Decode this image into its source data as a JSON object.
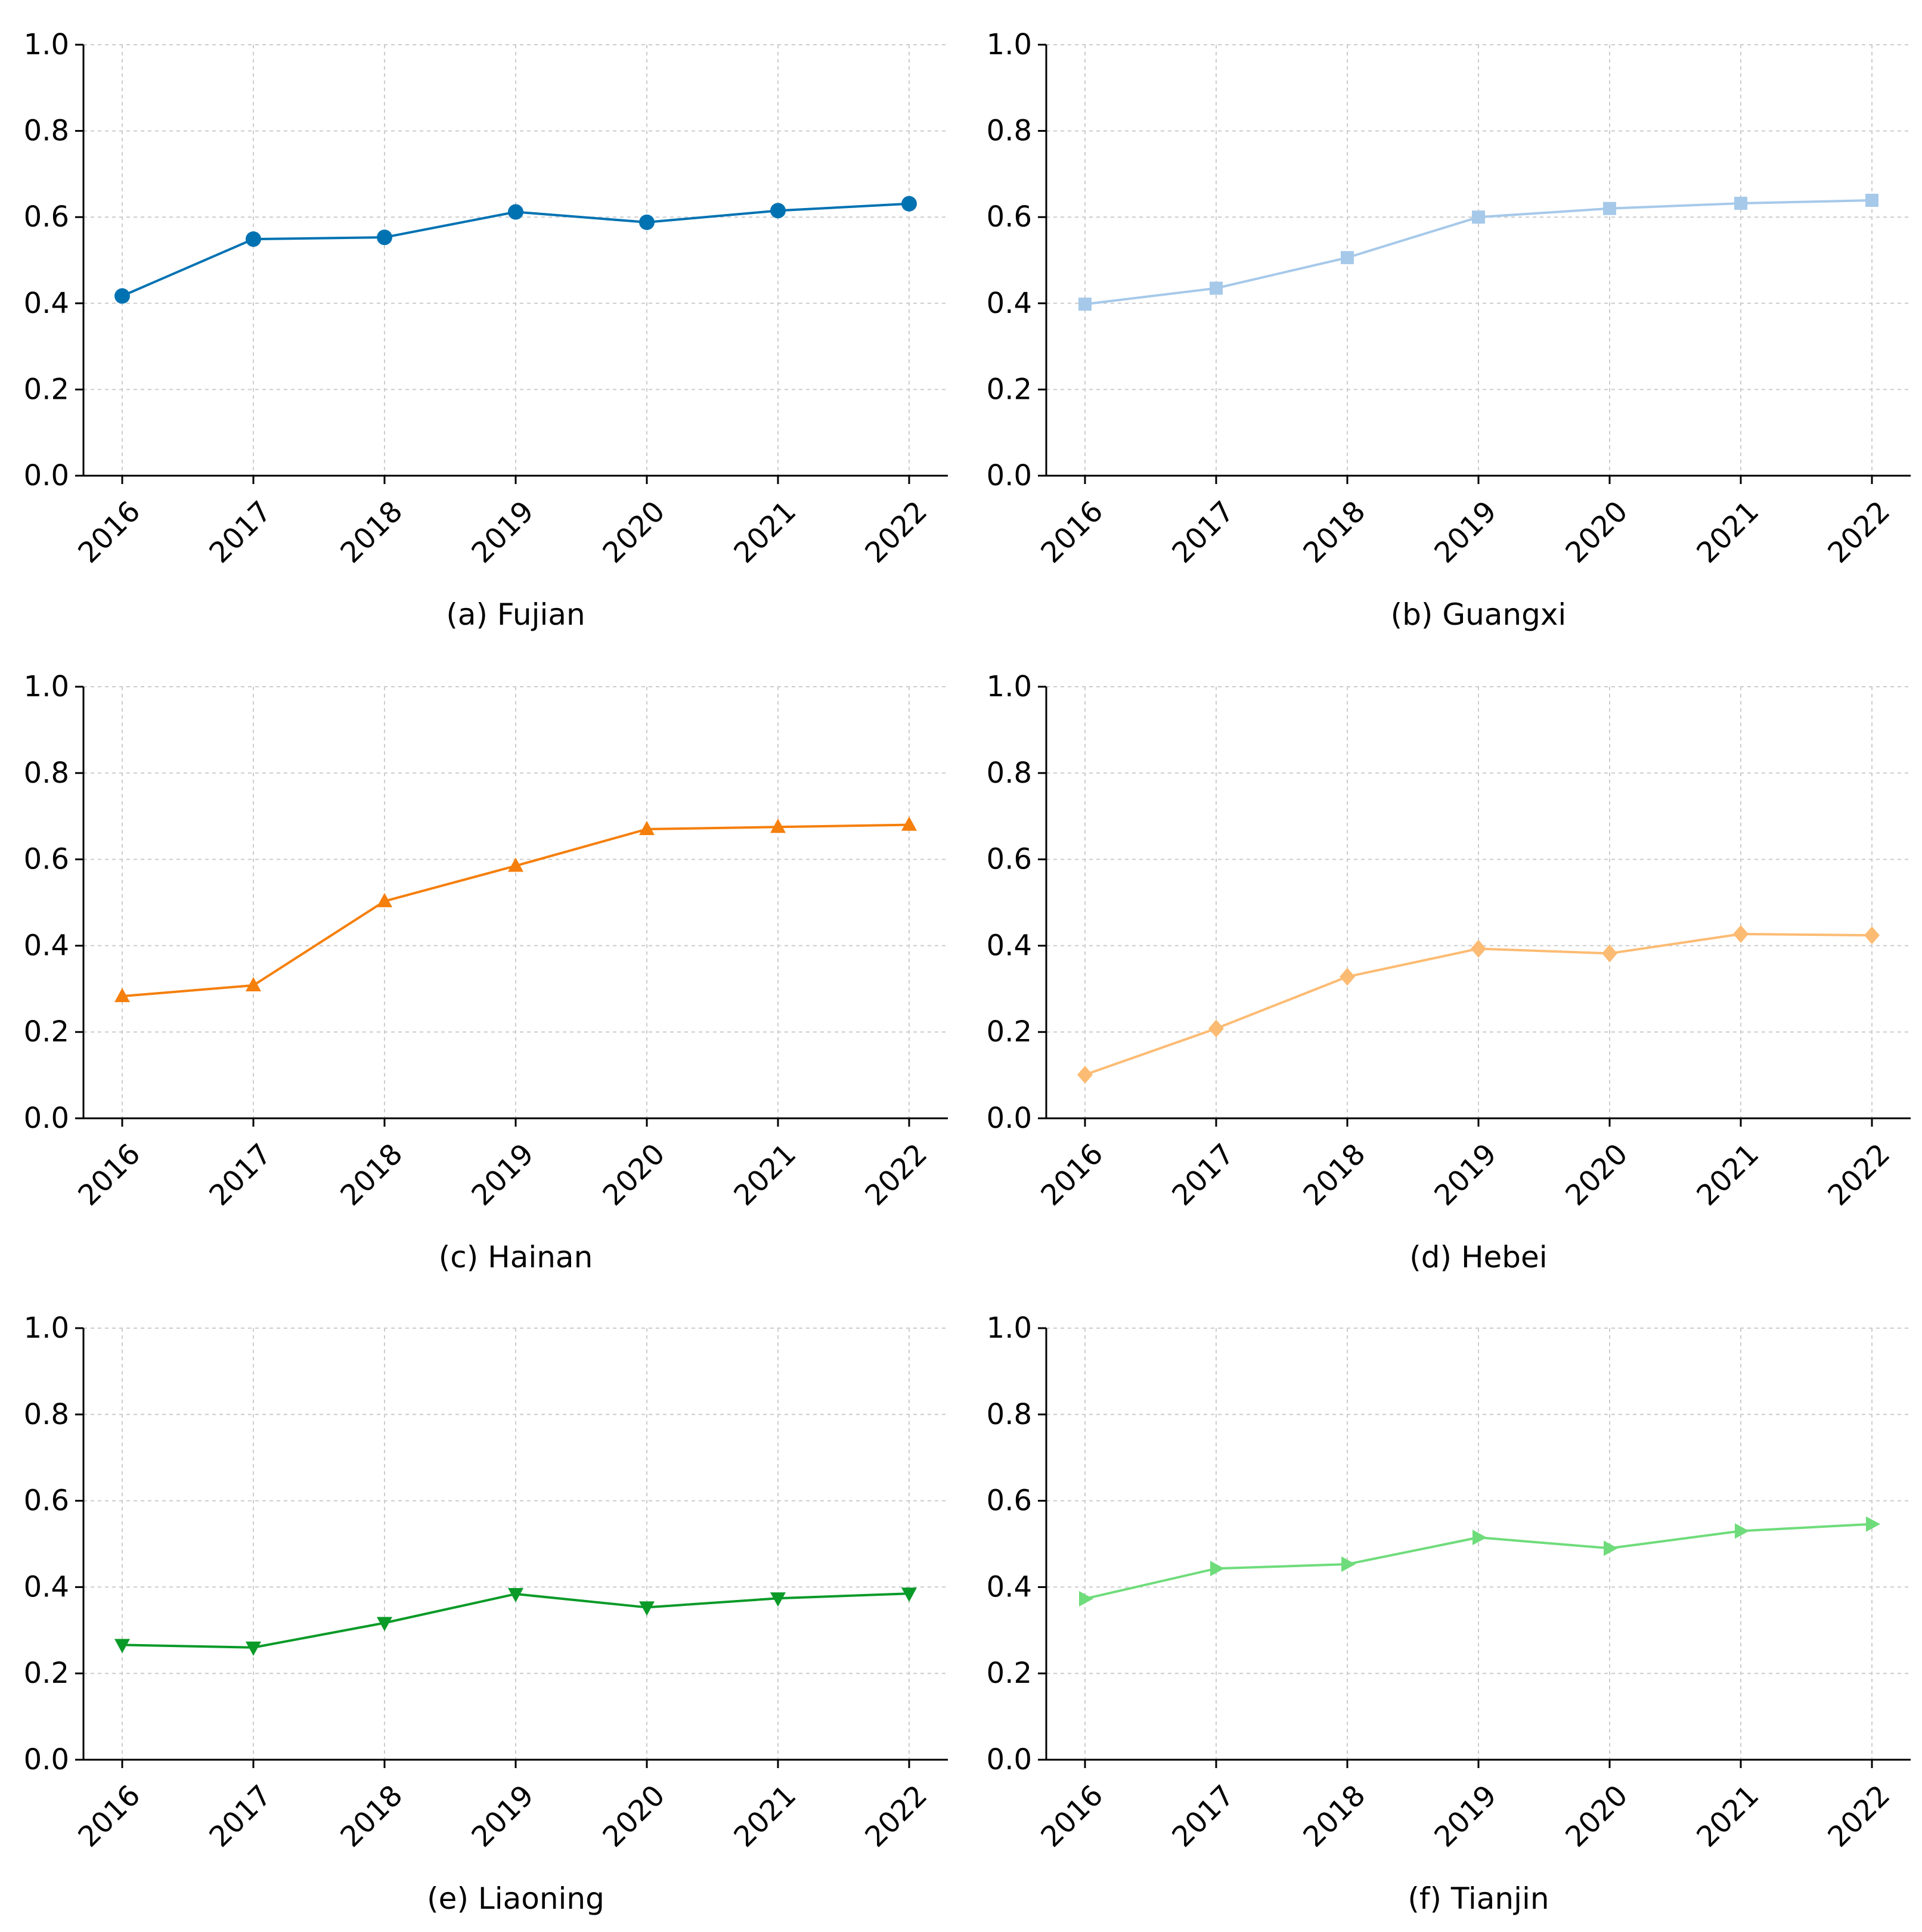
{
  "chart_data": [
    {
      "type": "line",
      "caption": "(a) Fujian",
      "categories": [
        "2016",
        "2017",
        "2018",
        "2019",
        "2020",
        "2021",
        "2022"
      ],
      "values": [
        0.417,
        0.549,
        0.553,
        0.612,
        0.588,
        0.615,
        0.631
      ],
      "ylim": [
        0,
        1
      ],
      "yticks": [
        "0.0",
        "0.2",
        "0.4",
        "0.6",
        "0.8",
        "1.0"
      ],
      "color": "#0072b2",
      "marker": "circle",
      "grid": true
    },
    {
      "type": "line",
      "caption": "(b) Guangxi",
      "categories": [
        "2016",
        "2017",
        "2018",
        "2019",
        "2020",
        "2021",
        "2022"
      ],
      "values": [
        0.398,
        0.435,
        0.506,
        0.6,
        0.62,
        0.632,
        0.639
      ],
      "ylim": [
        0,
        1
      ],
      "yticks": [
        "0.0",
        "0.2",
        "0.4",
        "0.6",
        "0.8",
        "1.0"
      ],
      "color": "#a6c9ea",
      "marker": "square",
      "grid": true
    },
    {
      "type": "line",
      "caption": "(c) Hainan",
      "categories": [
        "2016",
        "2017",
        "2018",
        "2019",
        "2020",
        "2021",
        "2022"
      ],
      "values": [
        0.283,
        0.308,
        0.503,
        0.585,
        0.67,
        0.675,
        0.68
      ],
      "ylim": [
        0,
        1
      ],
      "yticks": [
        "0.0",
        "0.2",
        "0.4",
        "0.6",
        "0.8",
        "1.0"
      ],
      "color": "#f57f0c",
      "marker": "triangle-up",
      "grid": true
    },
    {
      "type": "line",
      "caption": "(d) Hebei",
      "categories": [
        "2016",
        "2017",
        "2018",
        "2019",
        "2020",
        "2021",
        "2022"
      ],
      "values": [
        0.101,
        0.208,
        0.328,
        0.393,
        0.382,
        0.427,
        0.424
      ],
      "ylim": [
        0,
        1
      ],
      "yticks": [
        "0.0",
        "0.2",
        "0.4",
        "0.6",
        "0.8",
        "1.0"
      ],
      "color": "#fcbb73",
      "marker": "diamond",
      "grid": true
    },
    {
      "type": "line",
      "caption": "(e) Liaoning",
      "categories": [
        "2016",
        "2017",
        "2018",
        "2019",
        "2020",
        "2021",
        "2022"
      ],
      "values": [
        0.266,
        0.26,
        0.317,
        0.384,
        0.353,
        0.374,
        0.385
      ],
      "ylim": [
        0,
        1
      ],
      "yticks": [
        "0.0",
        "0.2",
        "0.4",
        "0.6",
        "0.8",
        "1.0"
      ],
      "color": "#0a9a28",
      "marker": "triangle-down",
      "grid": true
    },
    {
      "type": "line",
      "caption": "(f) Tianjin",
      "categories": [
        "2016",
        "2017",
        "2018",
        "2019",
        "2020",
        "2021",
        "2022"
      ],
      "values": [
        0.373,
        0.443,
        0.453,
        0.515,
        0.49,
        0.53,
        0.546
      ],
      "ylim": [
        0,
        1
      ],
      "yticks": [
        "0.0",
        "0.2",
        "0.4",
        "0.6",
        "0.8",
        "1.0"
      ],
      "color": "#6fdc7b",
      "marker": "triangle-right",
      "grid": true
    }
  ]
}
